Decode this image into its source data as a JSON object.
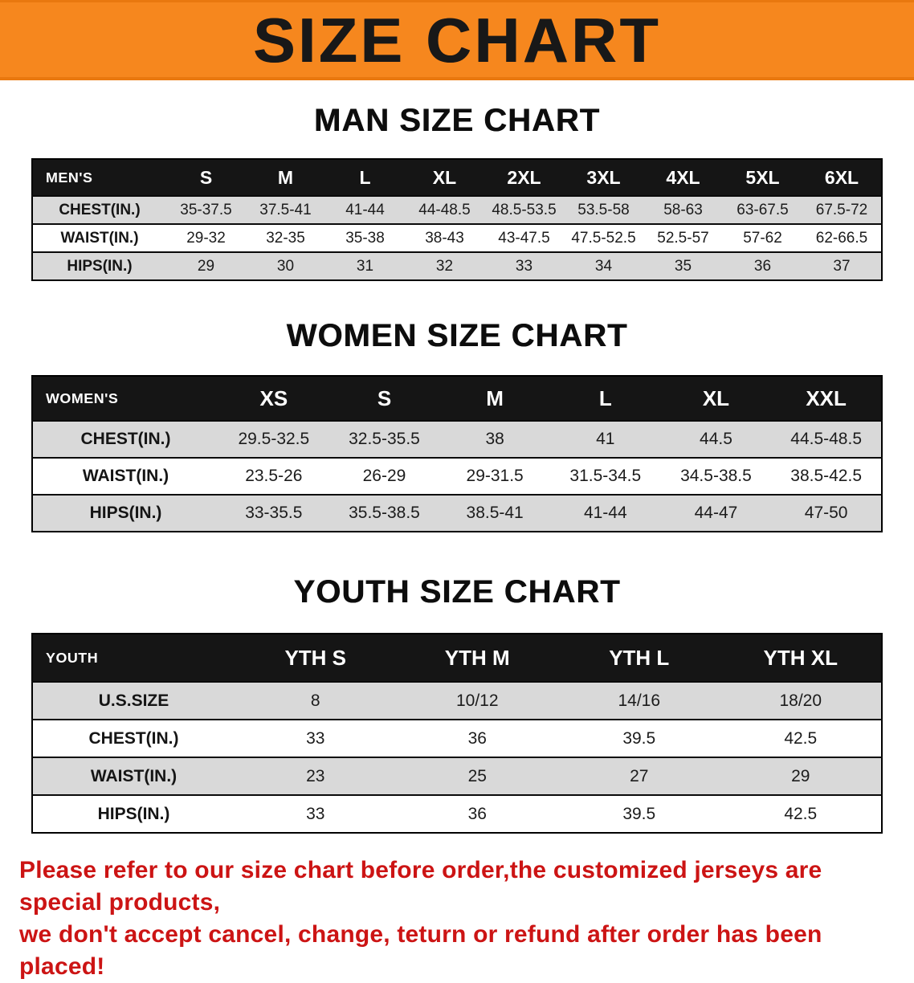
{
  "banner": {
    "title": "SIZE CHART",
    "bg_color": "#f6871e",
    "text_color": "#181818"
  },
  "sections": [
    {
      "heading": "MAN SIZE CHART",
      "table": {
        "header": [
          "MEN'S",
          "S",
          "M",
          "L",
          "XL",
          "2XL",
          "3XL",
          "4XL",
          "5XL",
          "6XL"
        ],
        "rows": [
          {
            "label": "CHEST(IN.)",
            "values": [
              "35-37.5",
              "37.5-41",
              "41-44",
              "44-48.5",
              "48.5-53.5",
              "53.5-58",
              "58-63",
              "63-67.5",
              "67.5-72"
            ]
          },
          {
            "label": "WAIST(IN.)",
            "values": [
              "29-32",
              "32-35",
              "35-38",
              "38-43",
              "43-47.5",
              "47.5-52.5",
              "52.5-57",
              "57-62",
              "62-66.5"
            ]
          },
          {
            "label": "HIPS(IN.)",
            "values": [
              "29",
              "30",
              "31",
              "32",
              "33",
              "34",
              "35",
              "36",
              "37"
            ]
          }
        ]
      }
    },
    {
      "heading": "WOMEN SIZE CHART",
      "table": {
        "header": [
          "WOMEN'S",
          "XS",
          "S",
          "M",
          "L",
          "XL",
          "XXL"
        ],
        "rows": [
          {
            "label": "CHEST(IN.)",
            "values": [
              "29.5-32.5",
              "32.5-35.5",
              "38",
              "41",
              "44.5",
              "44.5-48.5"
            ]
          },
          {
            "label": "WAIST(IN.)",
            "values": [
              "23.5-26",
              "26-29",
              "29-31.5",
              "31.5-34.5",
              "34.5-38.5",
              "38.5-42.5"
            ]
          },
          {
            "label": "HIPS(IN.)",
            "values": [
              "33-35.5",
              "35.5-38.5",
              "38.5-41",
              "41-44",
              "44-47",
              "47-50"
            ]
          }
        ]
      }
    },
    {
      "heading": "YOUTH SIZE CHART",
      "table": {
        "header": [
          "YOUTH",
          "YTH S",
          "YTH M",
          "YTH L",
          "YTH XL"
        ],
        "rows": [
          {
            "label": "U.S.SIZE",
            "values": [
              "8",
              "10/12",
              "14/16",
              "18/20"
            ]
          },
          {
            "label": "CHEST(IN.)",
            "values": [
              "33",
              "36",
              "39.5",
              "42.5"
            ]
          },
          {
            "label": "WAIST(IN.)",
            "values": [
              "23",
              "25",
              "27",
              "29"
            ]
          },
          {
            "label": "HIPS(IN.)",
            "values": [
              "33",
              "36",
              "39.5",
              "42.5"
            ]
          }
        ]
      }
    }
  ],
  "footer": {
    "color": "#cc1414",
    "lines": [
      "Please refer to our size chart before order,the customized jerseys are special products,",
      "we don't accept cancel, change, teturn or refund after order has been placed!"
    ]
  }
}
